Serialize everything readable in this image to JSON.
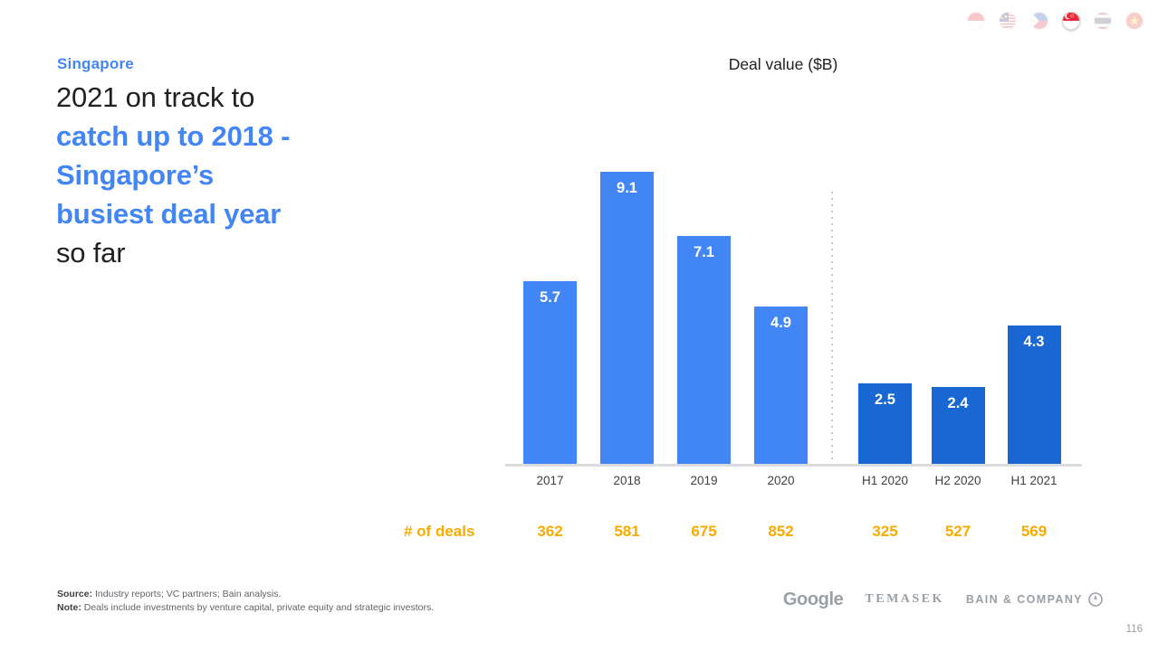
{
  "slide": {
    "region_label": "Singapore",
    "headline": {
      "lines": [
        {
          "text": "2021 on track to",
          "emphasis": false
        },
        {
          "text": "catch up to 2018 -",
          "emphasis": true
        },
        {
          "text": "Singapore’s",
          "emphasis": true
        },
        {
          "text": "busiest deal year",
          "emphasis": true
        },
        {
          "text": "so far",
          "emphasis": false
        }
      ]
    },
    "page_number": "116"
  },
  "header_flags": {
    "items": [
      "indonesia-flag-icon",
      "malaysia-flag-icon",
      "philippines-flag-icon",
      "singapore-flag-icon",
      "thailand-flag-icon",
      "vietnam-flag-icon"
    ],
    "active": "singapore-flag-icon"
  },
  "chart": {
    "title": "Deal value ($B)"
  },
  "chart_data": {
    "type": "bar",
    "title": "Deal value ($B)",
    "categories": [
      "2017",
      "2018",
      "2019",
      "2020",
      "H1 2020",
      "H2 2020",
      "H1 2021"
    ],
    "values": [
      5.7,
      9.1,
      7.1,
      4.9,
      2.5,
      2.4,
      4.3
    ],
    "value_labels": [
      "5.7",
      "9.1",
      "7.1",
      "4.9",
      "2.5",
      "2.4",
      "4.3"
    ],
    "groups": [
      "annual",
      "annual",
      "annual",
      "annual",
      "half-year",
      "half-year",
      "half-year"
    ],
    "group_colors": {
      "annual": "#4285F4",
      "half-year": "#1967D2"
    },
    "divider_after_category": "2020",
    "deals_row": {
      "label": "# of deals",
      "values": [
        "362",
        "581",
        "675",
        "852",
        "325",
        "527",
        "569"
      ]
    },
    "xlabel": "",
    "ylabel": "Deal value ($B)",
    "ylim": [
      0,
      9.5
    ],
    "grid": false,
    "legend": false
  },
  "footer": {
    "source_label": "Source:",
    "source_text": " Industry reports; VC partners; Bain analysis.",
    "note_label": "Note:",
    "note_text": " Deals include investments by venture capital, private equity and strategic investors."
  },
  "logos": {
    "google": "Google",
    "temasek": "TEMASEK",
    "bain": "BAIN & COMPANY"
  },
  "colors": {
    "accent_blue": "#4285F4",
    "dark_blue": "#1967D2",
    "orange": "#F9AB00",
    "text_dark": "#202124",
    "axis_gray": "#DADCE0",
    "muted_gray": "#9AA0A6"
  }
}
